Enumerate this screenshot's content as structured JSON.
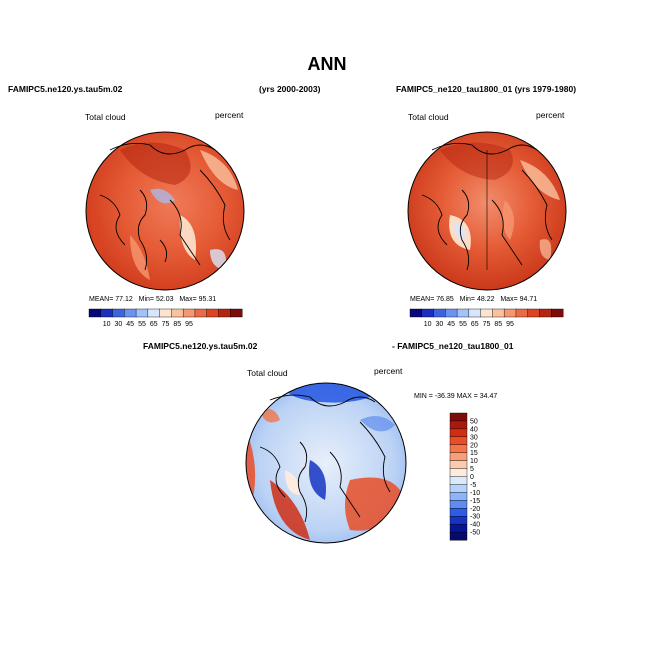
{
  "figure_title": "ANN",
  "chart_data": [
    {
      "type": "polar-contour-map",
      "left_title": "FAMIPC5.ne120.ys.tau5m.02",
      "right_title": "(yrs 2000-2003)",
      "variable": "Total cloud",
      "units": "percent",
      "stats": {
        "mean_label": "MEAN=",
        "mean": "77.12",
        "min_label": "Min=",
        "min": "52.03",
        "max_label": "Max=",
        "max": "95.31"
      },
      "colorbar_ticks": [
        "10",
        "30",
        "45",
        "55",
        "65",
        "75",
        "85",
        "95"
      ]
    },
    {
      "type": "polar-contour-map",
      "title": "FAMIPC5_ne120_tau1800_01 (yrs 1979-1980)",
      "variable": "Total cloud",
      "units": "percent",
      "stats": {
        "mean_label": "MEAN=",
        "mean": "76.85",
        "min_label": "Min=",
        "min": "48.22",
        "max_label": "Max=",
        "max": "94.71"
      },
      "colorbar_ticks": [
        "10",
        "30",
        "45",
        "55",
        "65",
        "75",
        "85",
        "95"
      ]
    },
    {
      "type": "polar-contour-map-difference",
      "left_title": "FAMIPC5.ne120.ys.tau5m.02",
      "right_title": "- FAMIPC5_ne120_tau1800_01",
      "variable": "Total cloud",
      "units": "percent",
      "range_text": "MIN = -36.39  MAX =  34.47",
      "colorbar_ticks": [
        "50",
        "40",
        "30",
        "20",
        "15",
        "10",
        "5",
        "0",
        "-5",
        "-10",
        "-15",
        "-20",
        "-30",
        "-40",
        "-50"
      ]
    }
  ],
  "colors": {
    "abs_scale": [
      "#08087a",
      "#1a2fc0",
      "#3f63e0",
      "#6d93f2",
      "#a4c2fa",
      "#d8e6fb",
      "#fde4cf",
      "#fbc09e",
      "#f69772",
      "#ec6a45",
      "#dc4422",
      "#b52610",
      "#7e0c0a"
    ],
    "diff_scale": [
      "#7e0c0a",
      "#a81a0e",
      "#cf2e14",
      "#e84e27",
      "#f2764a",
      "#f79f78",
      "#fbcbad",
      "#fdebde",
      "#dbe9fc",
      "#b6d2fb",
      "#8cb4f6",
      "#5f8cee",
      "#2e5de3",
      "#1534c2",
      "#0a1591",
      "#060a6a"
    ]
  }
}
